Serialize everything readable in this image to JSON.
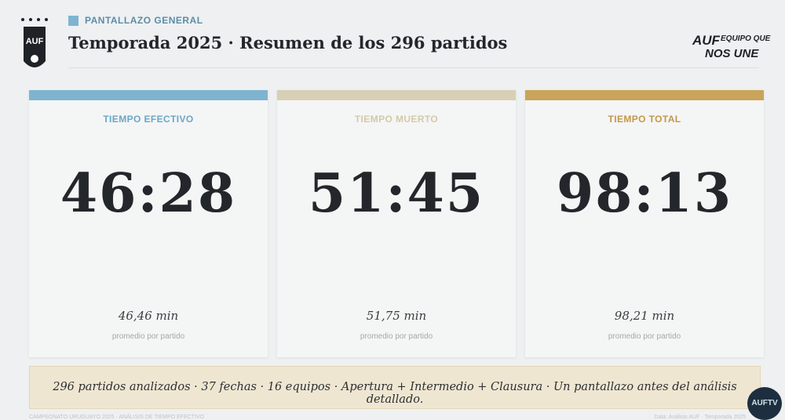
{
  "header": {
    "section_label": "PANTALLAZO GENERAL",
    "title": "Temporada 2025 · Resumen de los 296 partidos"
  },
  "crest": {
    "letters": "AUF"
  },
  "brand": {
    "mark": "AUF",
    "line1": "EQUIPO QUE",
    "line2": "NOS UNE"
  },
  "cards": [
    {
      "label": "TIEMPO EFECTIVO",
      "value": "46:28",
      "average": "46,46 min",
      "caption": "promedio por partido"
    },
    {
      "label": "TIEMPO MUERTO",
      "value": "51:45",
      "average": "51,75 min",
      "caption": "promedio por partido"
    },
    {
      "label": "TIEMPO TOTAL",
      "value": "98:13",
      "average": "98,21 min",
      "caption": "promedio por partido"
    }
  ],
  "summary": "296 partidos analizados · 37 fechas · 16 equipos · Apertura + Intermedio + Clausura · Un pantallazo antes del análisis detallado.",
  "footer": {
    "left": "CAMPEONATO URUGUAYO 2025 · ANÁLISIS DE TIEMPO EFECTIVO",
    "right": "Data: Análisis AUF · Temporada 2025"
  },
  "tv_logo": "AUFTV"
}
